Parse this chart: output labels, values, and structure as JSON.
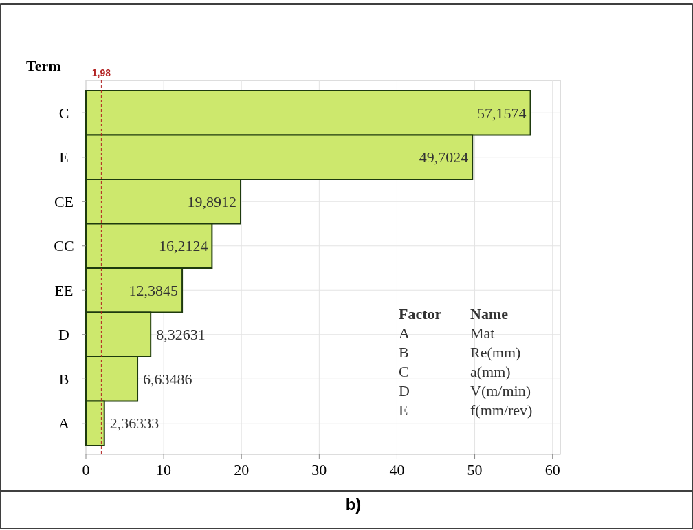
{
  "chart_data": {
    "type": "bar",
    "orientation": "horizontal",
    "ylabel": "Term",
    "categories": [
      "C",
      "E",
      "CE",
      "CC",
      "EE",
      "D",
      "B",
      "A"
    ],
    "values": [
      57.1574,
      49.7024,
      19.8912,
      16.2124,
      12.3845,
      8.32631,
      6.63486,
      2.36333
    ],
    "value_labels": [
      "57,1574",
      "49,7024",
      "19,8912",
      "16,2124",
      "12,3845",
      "8,32631",
      "6,63486",
      "2,36333"
    ],
    "color": "#cde86d",
    "xlim": [
      0,
      61
    ],
    "xticks": [
      0,
      10,
      20,
      30,
      40,
      50,
      60
    ],
    "grid": true,
    "ref_lines": [
      {
        "axis": "x",
        "value": 1.98,
        "label": "1,98",
        "color": "#b22222",
        "line_style": "dashed"
      }
    ],
    "annotations": [
      "Factor",
      "Name",
      "A",
      "Mat",
      "B",
      "Re(mm)",
      "C",
      "a(mm)",
      "D",
      "V(m/min)",
      "E",
      "f(mm/rev)",
      "b)"
    ]
  }
}
